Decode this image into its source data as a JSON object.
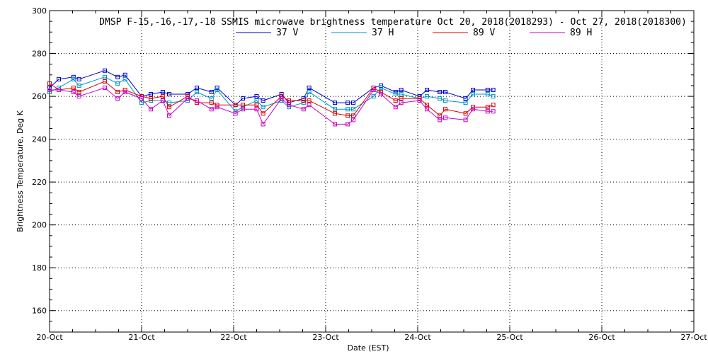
{
  "chart_data": {
    "type": "line",
    "title": "DMSP F-15,-16,-17,-18 SSMIS microwave brightness temperature Oct 20, 2018(2018293) - Oct 27, 2018(2018300)",
    "xlabel": "Date (EST)",
    "ylabel": "Brightness Temperature, Deg K",
    "xlim": [
      0,
      7
    ],
    "ylim": [
      150,
      300
    ],
    "x_ticks": [
      "20-Oct",
      "21-Oct",
      "22-Oct",
      "23-Oct",
      "24-Oct",
      "25-Oct",
      "26-Oct",
      "27-Oct"
    ],
    "y_ticks": [
      160,
      180,
      200,
      220,
      240,
      260,
      280,
      300
    ],
    "grid": true,
    "legend_position": "top-center",
    "series": [
      {
        "name": "37 V",
        "color": "#0000c8",
        "x": [
          0.0,
          0.1,
          0.26,
          0.32,
          0.6,
          0.74,
          0.82,
          1.0,
          1.1,
          1.23,
          1.3,
          1.5,
          1.6,
          1.76,
          1.82,
          2.02,
          2.1,
          2.25,
          2.32,
          2.52,
          2.6,
          2.76,
          2.82,
          3.1,
          3.24,
          3.3,
          3.52,
          3.6,
          3.76,
          3.82,
          4.02,
          4.1,
          4.24,
          4.3,
          4.52,
          4.6,
          4.76,
          4.82
        ],
        "values": [
          264,
          268,
          269,
          268,
          272,
          269,
          270,
          260,
          261,
          262,
          261,
          261,
          264,
          262,
          264,
          256,
          259,
          260,
          258,
          261,
          257,
          259,
          264,
          257,
          257,
          257,
          264,
          265,
          262,
          263,
          260,
          263,
          262,
          262,
          259,
          263,
          263,
          263
        ]
      },
      {
        "name": "37 H",
        "color": "#0096c8",
        "x": [
          0.0,
          0.1,
          0.26,
          0.32,
          0.6,
          0.74,
          0.82,
          1.0,
          1.1,
          1.23,
          1.3,
          1.5,
          1.6,
          1.76,
          1.82,
          2.02,
          2.1,
          2.25,
          2.32,
          2.52,
          2.6,
          2.76,
          2.82,
          3.1,
          3.24,
          3.3,
          3.52,
          3.6,
          3.76,
          3.82,
          4.02,
          4.1,
          4.24,
          4.3,
          4.52,
          4.6,
          4.76,
          4.82
        ],
        "values": [
          262,
          264,
          268,
          265,
          269,
          266,
          268,
          257,
          258,
          258,
          257,
          258,
          262,
          259,
          263,
          253,
          255,
          258,
          255,
          258,
          255,
          257,
          262,
          254,
          254,
          254,
          260,
          264,
          261,
          261,
          259,
          260,
          259,
          258,
          257,
          261,
          261,
          260
        ]
      },
      {
        "name": "89 V",
        "color": "#dc0000",
        "x": [
          0.0,
          0.1,
          0.26,
          0.32,
          0.6,
          0.74,
          0.82,
          1.0,
          1.1,
          1.23,
          1.3,
          1.5,
          1.6,
          1.76,
          1.82,
          2.02,
          2.1,
          2.25,
          2.32,
          2.52,
          2.6,
          2.76,
          2.82,
          3.1,
          3.24,
          3.3,
          3.52,
          3.6,
          3.76,
          3.82,
          4.02,
          4.1,
          4.24,
          4.3,
          4.52,
          4.6,
          4.76,
          4.82
        ],
        "values": [
          266,
          263,
          264,
          262,
          267,
          262,
          263,
          260,
          259,
          260,
          255,
          260,
          257,
          257,
          256,
          256,
          256,
          256,
          252,
          260,
          258,
          258,
          258,
          252,
          251,
          251,
          264,
          262,
          258,
          259,
          259,
          256,
          251,
          254,
          252,
          255,
          255,
          256
        ]
      },
      {
        "name": "89 H",
        "color": "#c800c8",
        "x": [
          0.0,
          0.1,
          0.26,
          0.32,
          0.6,
          0.74,
          0.82,
          1.0,
          1.1,
          1.23,
          1.3,
          1.5,
          1.6,
          1.76,
          1.82,
          2.02,
          2.1,
          2.25,
          2.32,
          2.52,
          2.6,
          2.76,
          2.82,
          3.1,
          3.24,
          3.3,
          3.52,
          3.6,
          3.76,
          3.82,
          4.02,
          4.1,
          4.24,
          4.3,
          4.52,
          4.6,
          4.76,
          4.82
        ],
        "values": [
          263,
          263,
          262,
          260,
          264,
          259,
          262,
          259,
          254,
          258,
          251,
          259,
          258,
          254,
          255,
          252,
          254,
          254,
          247,
          259,
          256,
          254,
          256,
          247,
          247,
          249,
          263,
          261,
          255,
          257,
          258,
          254,
          249,
          250,
          249,
          254,
          253,
          253
        ]
      }
    ]
  }
}
